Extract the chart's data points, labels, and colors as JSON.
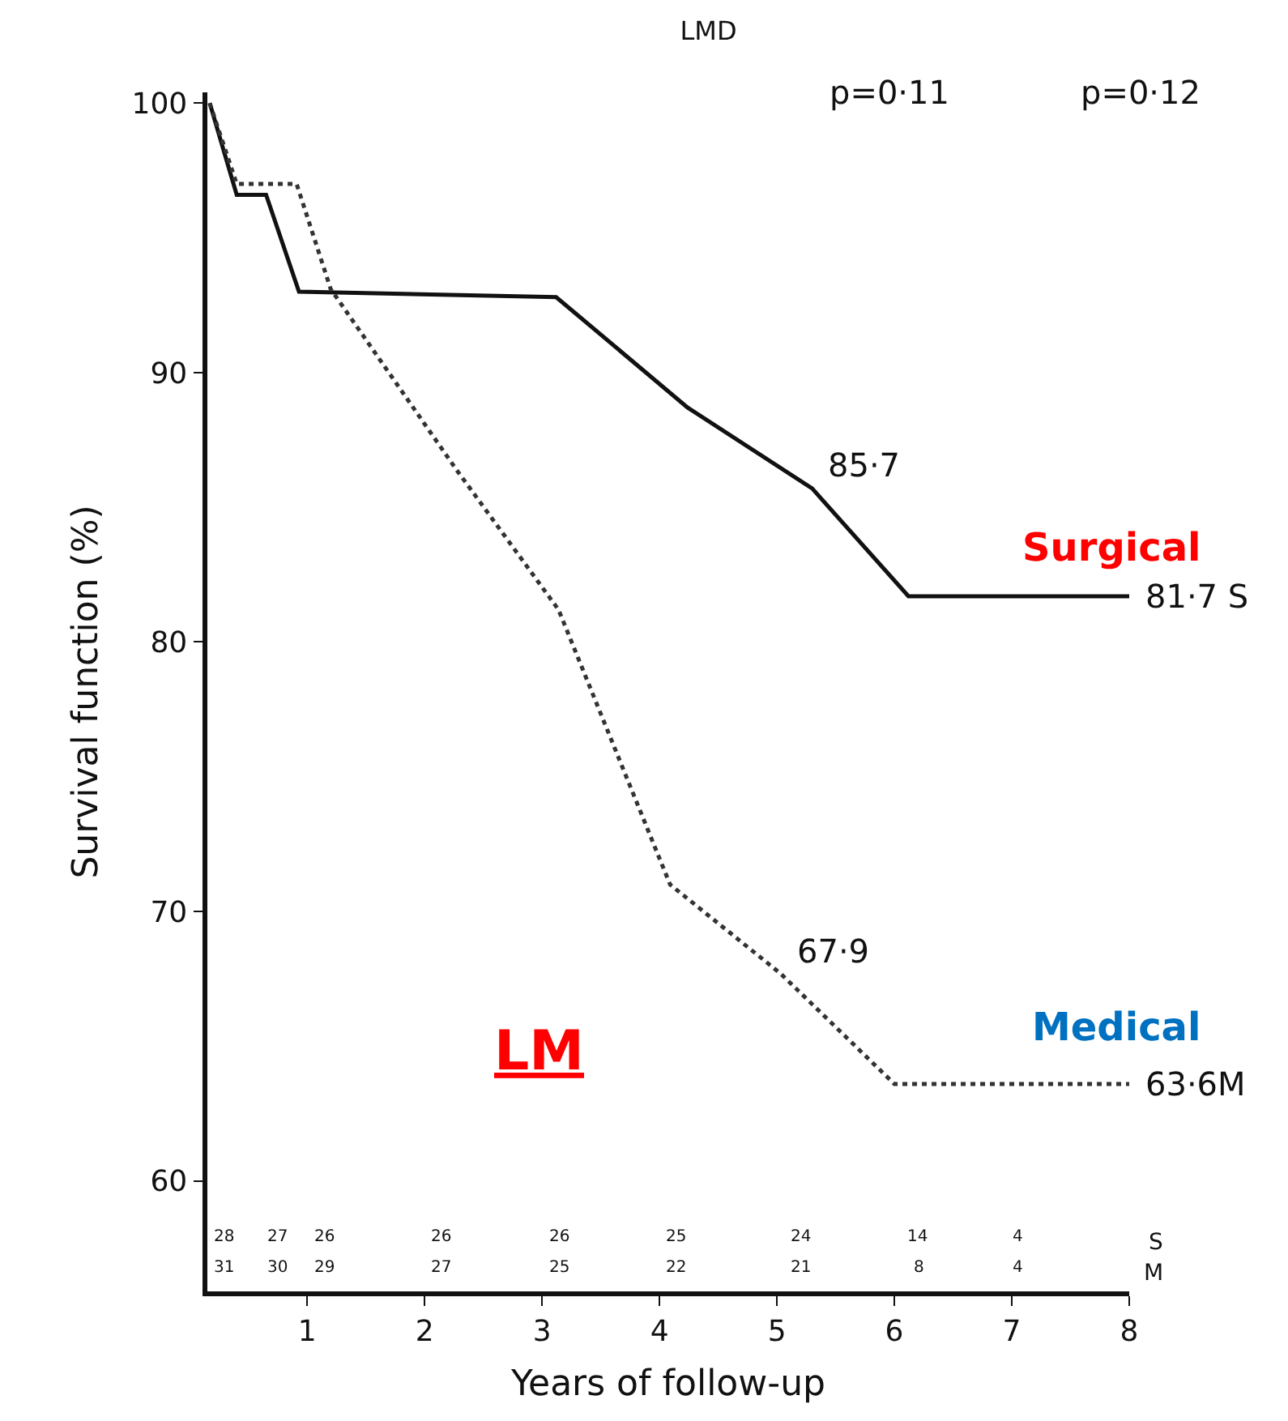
{
  "chart_data": {
    "type": "line",
    "title": "LMD",
    "xlabel": "Years of follow-up",
    "ylabel": "Survival function (%)",
    "xlim": [
      0.15,
      8.0
    ],
    "xticks": [
      1,
      2,
      3,
      4,
      5,
      6,
      7,
      8
    ],
    "ylim": [
      55.9,
      100.4
    ],
    "yticks": [
      60,
      70,
      80,
      90,
      100
    ],
    "legend": false,
    "marker": "none",
    "series": [
      {
        "color": "#111111",
        "line_style": "solid",
        "x": [
          0.17,
          0.4,
          0.65,
          0.93,
          3.12,
          4.24,
          5.3,
          6.12,
          8.0
        ],
        "values": [
          100,
          96.6,
          96.6,
          93.0,
          92.8,
          88.7,
          85.7,
          81.7,
          81.7
        ]
      },
      {
        "color": "#333333",
        "line_style": "dotted",
        "x": [
          0.17,
          0.4,
          0.91,
          1.2,
          2.27,
          3.14,
          4.09,
          5.03,
          6.0,
          8.0
        ],
        "values": [
          100,
          97.0,
          97.0,
          93.1,
          86.4,
          81.2,
          71.0,
          67.7,
          63.6,
          63.6
        ]
      }
    ],
    "annotations": [
      {
        "text": "85·7",
        "x": 5.3,
        "y": 85.7
      },
      {
        "text": "81·7 S",
        "x": 8.0,
        "y": 81.7
      },
      {
        "text": "67·9",
        "x": 5.03,
        "y": 67.7
      },
      {
        "text": "63·6M",
        "x": 8.0,
        "y": 63.6
      },
      "p=0·11",
      "p=0·12",
      "Surgical",
      "Medical",
      "LM",
      "S",
      "M",
      "28",
      "27",
      "26",
      "26",
      "26",
      "25",
      "24",
      "14",
      "4",
      "31",
      "30",
      "29",
      "27",
      "25",
      "22",
      "21",
      "8",
      "4"
    ]
  }
}
